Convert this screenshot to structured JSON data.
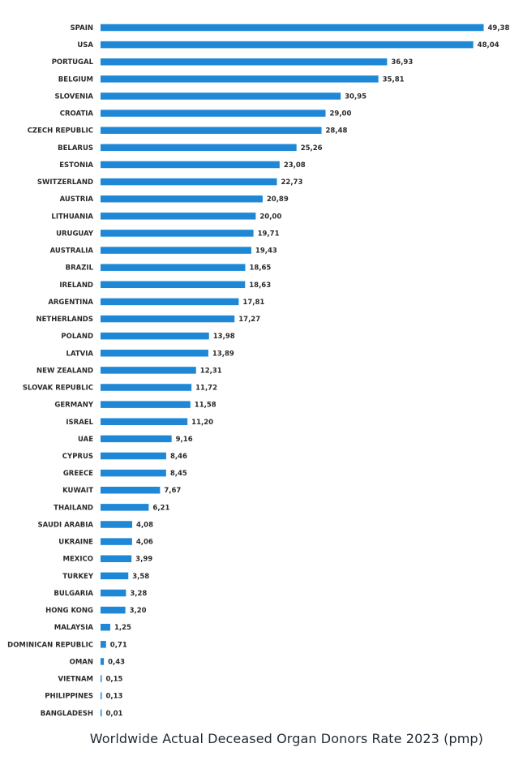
{
  "chart_data": {
    "type": "bar",
    "orientation": "horizontal",
    "title": "Worldwide Actual Deceased Organ Donors Rate 2023 (pmp)",
    "xlabel": "",
    "ylabel": "",
    "xlim": [
      0,
      50
    ],
    "grid": false,
    "legend": "none",
    "bar_color": "#1e88d6",
    "categories": [
      "SPAIN",
      "USA",
      "PORTUGAL",
      "BELGIUM",
      "SLOVENIA",
      "CROATIA",
      "CZECH REPUBLIC",
      "BELARUS",
      "ESTONIA",
      "SWITZERLAND",
      "AUSTRIA",
      "LITHUANIA",
      "URUGUAY",
      "AUSTRALIA",
      "BRAZIL",
      "IRELAND",
      "ARGENTINA",
      "NETHERLANDS",
      "POLAND",
      "LATVIA",
      "NEW ZEALAND",
      "SLOVAK REPUBLIC",
      "GERMANY",
      "ISRAEL",
      "UAE",
      "CYPRUS",
      "GREECE",
      "KUWAIT",
      "THAILAND",
      "SAUDI ARABIA",
      "UKRAINE",
      "MEXICO",
      "TURKEY",
      "BULGARIA",
      "HONG KONG",
      "MALAYSIA",
      "DOMINICAN REPUBLIC",
      "OMAN",
      "VIETNAM",
      "PHILIPPINES",
      "BANGLADESH"
    ],
    "values": [
      49.38,
      48.04,
      36.93,
      35.81,
      30.95,
      29.0,
      28.48,
      25.26,
      23.08,
      22.73,
      20.89,
      20.0,
      19.71,
      19.43,
      18.65,
      18.63,
      17.81,
      17.27,
      13.98,
      13.89,
      12.31,
      11.72,
      11.58,
      11.2,
      9.16,
      8.46,
      8.45,
      7.67,
      6.21,
      4.08,
      4.06,
      3.99,
      3.58,
      3.28,
      3.2,
      1.25,
      0.71,
      0.43,
      0.15,
      0.13,
      0.01
    ],
    "value_labels": [
      "49,38",
      "48,04",
      "36,93",
      "35,81",
      "30,95",
      "29,00",
      "28,48",
      "25,26",
      "23,08",
      "22,73",
      "20,89",
      "20,00",
      "19,71",
      "19,43",
      "18,65",
      "18,63",
      "17,81",
      "17,27",
      "13,98",
      "13,89",
      "12,31",
      "11,72",
      "11,58",
      "11,20",
      "9,16",
      "8,46",
      "8,45",
      "7,67",
      "6,21",
      "4,08",
      "4,06",
      "3,99",
      "3,58",
      "3,28",
      "3,20",
      "1,25",
      "0,71",
      "0,43",
      "0,15",
      "0,13",
      "0,01"
    ]
  }
}
